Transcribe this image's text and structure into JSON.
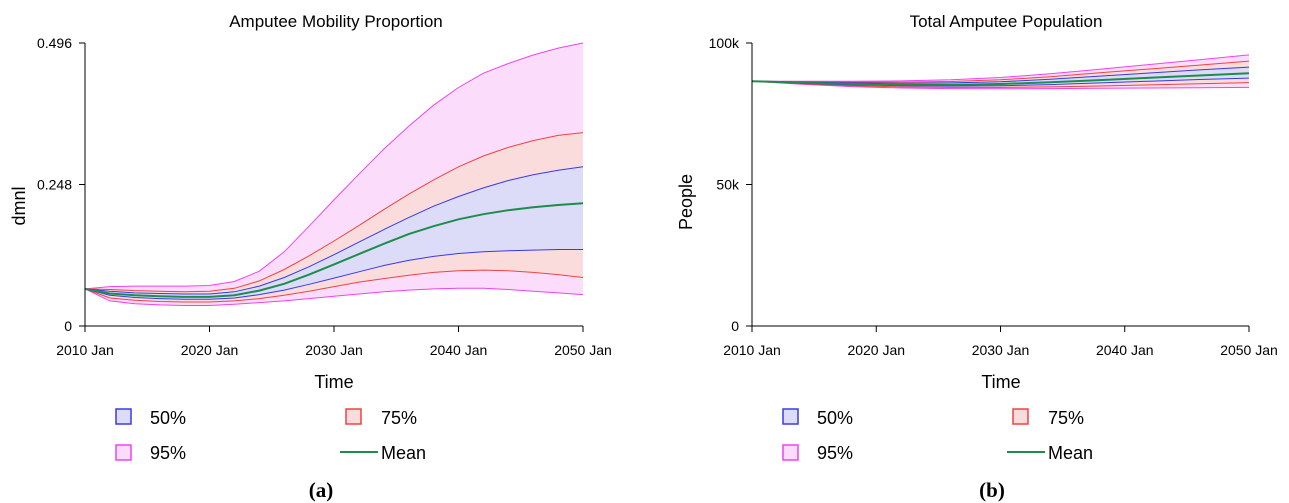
{
  "figure": {
    "panel_a_label": "(a)",
    "panel_b_label": "(b)"
  },
  "chart_data": [
    {
      "type": "area",
      "title": "Amputee Mobility Proportion",
      "xlabel": "Time",
      "ylabel": "dmnl",
      "x_ticks": [
        "2010 Jan",
        "2020 Jan",
        "2030 Jan",
        "2040 Jan",
        "2050 Jan"
      ],
      "y_ticks": [
        "0",
        "0.248",
        "0.496"
      ],
      "xlim": [
        2010,
        2050
      ],
      "ylim": [
        0,
        0.496
      ],
      "x": [
        2010,
        2012,
        2014,
        2016,
        2018,
        2020,
        2022,
        2024,
        2026,
        2028,
        2030,
        2032,
        2034,
        2036,
        2038,
        2040,
        2042,
        2044,
        2046,
        2048,
        2050
      ],
      "series": [
        {
          "name": "Mean",
          "values": [
            0.065,
            0.057,
            0.054,
            0.052,
            0.051,
            0.051,
            0.054,
            0.062,
            0.074,
            0.09,
            0.108,
            0.126,
            0.144,
            0.161,
            0.175,
            0.187,
            0.196,
            0.203,
            0.208,
            0.212,
            0.215
          ]
        },
        {
          "name": "50%",
          "upper": [
            0.065,
            0.061,
            0.058,
            0.057,
            0.056,
            0.056,
            0.06,
            0.07,
            0.085,
            0.104,
            0.125,
            0.147,
            0.169,
            0.19,
            0.21,
            0.227,
            0.242,
            0.255,
            0.265,
            0.273,
            0.279
          ],
          "lower": [
            0.065,
            0.054,
            0.05,
            0.048,
            0.047,
            0.047,
            0.049,
            0.055,
            0.063,
            0.073,
            0.084,
            0.095,
            0.106,
            0.115,
            0.122,
            0.127,
            0.13,
            0.132,
            0.133,
            0.134,
            0.134
          ]
        },
        {
          "name": "75%",
          "upper": [
            0.065,
            0.064,
            0.062,
            0.061,
            0.06,
            0.061,
            0.066,
            0.079,
            0.099,
            0.123,
            0.149,
            0.176,
            0.204,
            0.231,
            0.256,
            0.279,
            0.298,
            0.313,
            0.325,
            0.334,
            0.339
          ],
          "lower": [
            0.065,
            0.049,
            0.045,
            0.043,
            0.042,
            0.042,
            0.044,
            0.048,
            0.054,
            0.061,
            0.069,
            0.077,
            0.083,
            0.089,
            0.094,
            0.097,
            0.098,
            0.097,
            0.094,
            0.09,
            0.085
          ]
        },
        {
          "name": "95%",
          "upper": [
            0.065,
            0.069,
            0.07,
            0.07,
            0.07,
            0.071,
            0.078,
            0.096,
            0.13,
            0.175,
            0.221,
            0.266,
            0.31,
            0.35,
            0.387,
            0.418,
            0.443,
            0.46,
            0.475,
            0.487,
            0.496
          ],
          "lower": [
            0.065,
            0.044,
            0.039,
            0.037,
            0.036,
            0.036,
            0.038,
            0.041,
            0.044,
            0.048,
            0.052,
            0.056,
            0.06,
            0.063,
            0.065,
            0.066,
            0.066,
            0.064,
            0.061,
            0.058,
            0.055
          ]
        }
      ],
      "legend": [
        "50%",
        "75%",
        "95%",
        "Mean"
      ],
      "colors": {
        "50%": "#3a3ae6",
        "75%": "#ee4444",
        "95%": "#ee44ee",
        "Mean": "#1e8c4a"
      },
      "fills": {
        "50%": "#dcdcf8",
        "75%": "#fadcdc",
        "95%": "#fbdcfb"
      }
    },
    {
      "type": "area",
      "title": "Total Amputee Population",
      "xlabel": "Time",
      "ylabel": "People",
      "x_ticks": [
        "2010 Jan",
        "2020 Jan",
        "2030 Jan",
        "2040 Jan",
        "2050 Jan"
      ],
      "y_ticks": [
        "0",
        "50k",
        "100k"
      ],
      "xlim": [
        2010,
        2050
      ],
      "ylim": [
        0,
        100000
      ],
      "x": [
        2010,
        2014,
        2018,
        2022,
        2026,
        2030,
        2034,
        2038,
        2042,
        2046,
        2050
      ],
      "series": [
        {
          "name": "Mean",
          "values": [
            86500,
            86000,
            85500,
            85200,
            85200,
            85500,
            86100,
            86900,
            87700,
            88500,
            89300
          ]
        },
        {
          "name": "50%",
          "upper": [
            86500,
            86200,
            85900,
            85800,
            85900,
            86300,
            87200,
            88300,
            89400,
            90500,
            91500
          ],
          "lower": [
            86500,
            85800,
            85200,
            84900,
            84800,
            84900,
            85300,
            85900,
            86500,
            87100,
            87600
          ]
        },
        {
          "name": "75%",
          "upper": [
            86500,
            86300,
            86200,
            86200,
            86400,
            87000,
            88100,
            89500,
            90800,
            92200,
            93600
          ],
          "lower": [
            86500,
            85600,
            84900,
            84500,
            84300,
            84300,
            84500,
            84800,
            85200,
            85600,
            86000
          ]
        },
        {
          "name": "95%",
          "upper": [
            86500,
            86500,
            86500,
            86600,
            87000,
            87800,
            89100,
            90700,
            92400,
            94100,
            95800
          ],
          "lower": [
            86500,
            85400,
            84600,
            84100,
            83900,
            83800,
            83900,
            84000,
            84100,
            84200,
            84300
          ]
        }
      ],
      "legend": [
        "50%",
        "75%",
        "95%",
        "Mean"
      ],
      "colors": {
        "50%": "#3a3ae6",
        "75%": "#ee4444",
        "95%": "#ee44ee",
        "Mean": "#1e8c4a"
      },
      "fills": {
        "50%": "#dcdcf8",
        "75%": "#fadcdc",
        "95%": "#fbdcfb"
      }
    }
  ]
}
